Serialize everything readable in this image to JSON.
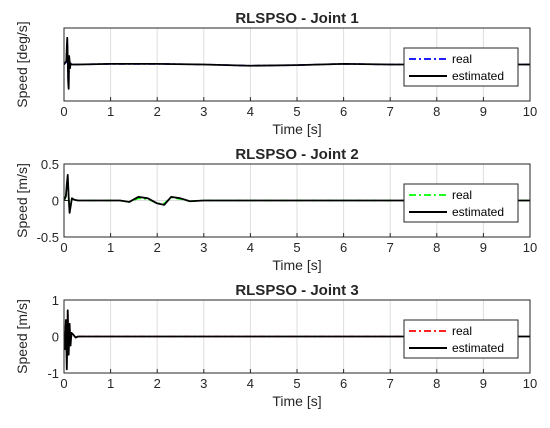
{
  "chart_data": [
    {
      "type": "line",
      "title": "RLSPSO - Joint 1",
      "xlabel": "Time [s]",
      "ylabel": "Speed [deg/s]",
      "xlim": [
        0,
        10
      ],
      "xticks": [
        "0",
        "1",
        "2",
        "3",
        "4",
        "5",
        "6",
        "7",
        "8",
        "9",
        "10"
      ],
      "ylim": [
        -30,
        30
      ],
      "yticks": [],
      "grid": true,
      "legend_position": "right",
      "series": [
        {
          "name": "real",
          "color": "#0000ff",
          "style": "dashdot",
          "x": [
            0,
            0.05,
            0.06,
            0.07,
            0.08,
            0.09,
            0.1,
            0.11,
            0.12,
            0.13,
            0.14,
            0.16,
            0.2,
            0.3,
            1,
            2,
            3,
            4,
            5,
            6,
            7,
            8,
            9,
            10
          ],
          "y": [
            0,
            2,
            12,
            20,
            4,
            -12,
            -18,
            6,
            3,
            -3,
            1,
            0,
            0,
            0,
            0.5,
            0.5,
            0,
            -1,
            -0.5,
            0.5,
            0,
            0,
            0,
            0
          ]
        },
        {
          "name": "estimated",
          "color": "#000000",
          "style": "solid",
          "x": [
            0,
            0.05,
            0.06,
            0.07,
            0.08,
            0.09,
            0.1,
            0.11,
            0.12,
            0.13,
            0.14,
            0.16,
            0.2,
            0.3,
            1,
            2,
            3,
            4,
            5,
            6,
            7,
            8,
            9,
            10
          ],
          "y": [
            0,
            3,
            14,
            22,
            5,
            -14,
            -20,
            7,
            3,
            -3,
            1,
            0,
            0,
            0,
            0.5,
            0.5,
            0,
            -1,
            -0.5,
            0.5,
            0,
            0,
            0,
            0
          ]
        }
      ]
    },
    {
      "type": "line",
      "title": "RLSPSO - Joint 2",
      "xlabel": "Time [s]",
      "ylabel": "Speed [m/s]",
      "xlim": [
        0,
        10
      ],
      "xticks": [
        "0",
        "1",
        "2",
        "3",
        "4",
        "5",
        "6",
        "7",
        "8",
        "9",
        "10"
      ],
      "ylim": [
        -0.5,
        0.5
      ],
      "yticks": [
        "-0.5",
        "0",
        "0.5"
      ],
      "grid": true,
      "legend_position": "right",
      "series": [
        {
          "name": "real",
          "color": "#00ff00",
          "style": "dashdot",
          "x": [
            0,
            0.04,
            0.06,
            0.08,
            0.1,
            0.12,
            0.14,
            0.17,
            0.22,
            0.3,
            0.5,
            1.2,
            1.4,
            1.6,
            1.8,
            2.0,
            2.15,
            2.3,
            2.5,
            2.7,
            3.0,
            3.5,
            4,
            10
          ],
          "y": [
            0,
            0.05,
            0.2,
            0.32,
            0.05,
            -0.15,
            -0.08,
            0.03,
            0.01,
            0,
            0,
            0,
            -0.02,
            0.03,
            0.02,
            -0.04,
            -0.04,
            0.04,
            0.02,
            -0.01,
            0,
            0,
            0,
            0
          ]
        },
        {
          "name": "estimated",
          "color": "#000000",
          "style": "solid",
          "x": [
            0,
            0.04,
            0.06,
            0.08,
            0.1,
            0.12,
            0.14,
            0.17,
            0.22,
            0.3,
            0.5,
            1.2,
            1.4,
            1.6,
            1.8,
            2.0,
            2.15,
            2.3,
            2.5,
            2.7,
            3.0,
            3.5,
            4,
            10
          ],
          "y": [
            0,
            0.06,
            0.22,
            0.35,
            0.05,
            -0.17,
            -0.09,
            0.03,
            0.01,
            0,
            0,
            0,
            -0.02,
            0.05,
            0.03,
            -0.04,
            -0.06,
            0.05,
            0.03,
            -0.01,
            0,
            0,
            0,
            0
          ]
        }
      ]
    },
    {
      "type": "line",
      "title": "RLSPSO - Joint 3",
      "xlabel": "Time [s]",
      "ylabel": "Speed [m/s]",
      "xlim": [
        0,
        10
      ],
      "xticks": [
        "0",
        "1",
        "2",
        "3",
        "4",
        "5",
        "6",
        "7",
        "8",
        "9",
        "10"
      ],
      "ylim": [
        -1,
        1
      ],
      "yticks": [
        "-1",
        "0",
        "1"
      ],
      "grid": true,
      "legend_position": "right",
      "series": [
        {
          "name": "real",
          "color": "#ff0000",
          "style": "dashdot",
          "x": [
            0,
            0.02,
            0.04,
            0.06,
            0.08,
            0.1,
            0.12,
            0.14,
            0.16,
            0.2,
            0.25,
            0.3,
            0.5,
            1,
            5,
            10
          ],
          "y": [
            0,
            -0.3,
            0.4,
            -0.6,
            0.7,
            -0.4,
            0.3,
            -0.2,
            0.1,
            0.05,
            -0.03,
            0,
            0,
            0,
            0,
            0
          ]
        },
        {
          "name": "estimated",
          "color": "#000000",
          "style": "solid",
          "x": [
            0,
            0.02,
            0.04,
            0.06,
            0.08,
            0.1,
            0.12,
            0.14,
            0.16,
            0.2,
            0.25,
            0.3,
            0.5,
            1,
            5,
            10
          ],
          "y": [
            0,
            -0.35,
            0.45,
            -0.9,
            0.72,
            -0.5,
            0.35,
            -0.25,
            0.1,
            0.05,
            -0.03,
            0,
            0,
            0,
            0,
            0
          ]
        }
      ]
    }
  ]
}
